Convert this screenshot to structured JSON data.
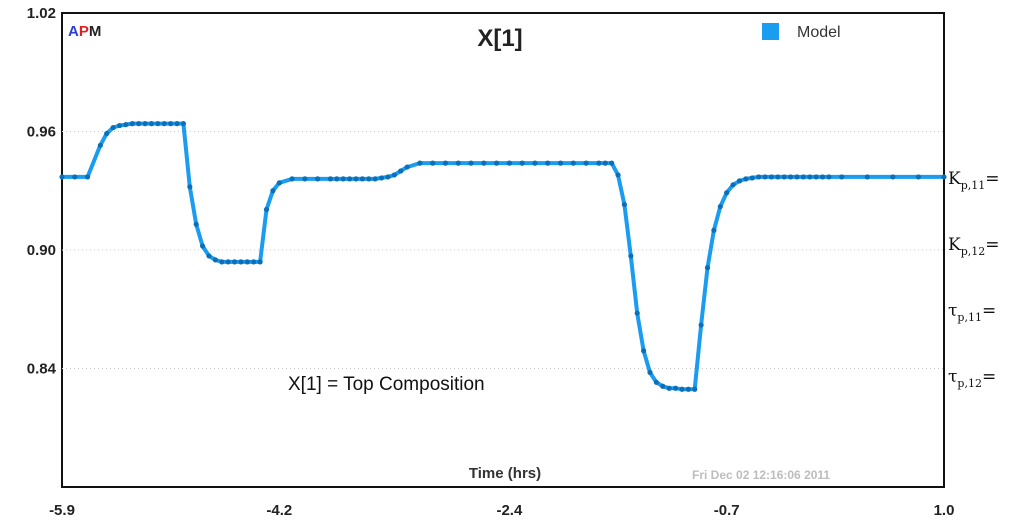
{
  "logo": {
    "a": "A",
    "p": "P",
    "m": "M",
    "a_color": "#2b3fd0",
    "p_color": "#e02020",
    "m_color": "#222222"
  },
  "stamp": "Fri Dec 02 12:16:06 2011",
  "annotation": "X[1] = Top Composition",
  "side_params": [
    {
      "base": "K",
      "sub": "p,11",
      "tail": "="
    },
    {
      "base": "K",
      "sub": "p,12",
      "tail": "="
    },
    {
      "base": "τ",
      "sub": "p,11",
      "tail": "="
    },
    {
      "base": "τ",
      "sub": "p,12",
      "tail": "="
    }
  ],
  "chart_data": {
    "type": "line",
    "title": "X[1]",
    "xlabel": "Time (hrs)",
    "ylabel": "",
    "xlim": [
      -5.9,
      1.0
    ],
    "ylim": [
      0.78,
      1.02
    ],
    "xticks": [
      "-5.9",
      "-4.2",
      "-2.4",
      "-0.7",
      "1.0"
    ],
    "xtick_values": [
      -5.9,
      -4.2,
      -2.4,
      -0.7,
      1.0
    ],
    "yticks": [
      "0.84",
      "0.90",
      "0.96",
      "1.02"
    ],
    "ytick_values": [
      0.84,
      0.9,
      0.96,
      1.02
    ],
    "grid": true,
    "legend": "top-right",
    "line_color": "#1a9cf0",
    "series": [
      {
        "name": "Model",
        "x": [
          -5.9,
          -5.8,
          -5.7,
          -5.6,
          -5.55,
          -5.5,
          -5.45,
          -5.4,
          -5.35,
          -5.3,
          -5.25,
          -5.2,
          -5.15,
          -5.1,
          -5.05,
          -5.0,
          -4.95,
          -4.9,
          -4.85,
          -4.8,
          -4.75,
          -4.7,
          -4.65,
          -4.6,
          -4.55,
          -4.5,
          -4.45,
          -4.4,
          -4.35,
          -4.3,
          -4.25,
          -4.2,
          -4.1,
          -4.0,
          -3.9,
          -3.8,
          -3.75,
          -3.7,
          -3.65,
          -3.6,
          -3.55,
          -3.5,
          -3.45,
          -3.4,
          -3.35,
          -3.3,
          -3.25,
          -3.2,
          -3.1,
          -3.0,
          -2.9,
          -2.8,
          -2.7,
          -2.6,
          -2.5,
          -2.4,
          -2.3,
          -2.2,
          -2.1,
          -2.0,
          -1.9,
          -1.8,
          -1.7,
          -1.65,
          -1.6,
          -1.55,
          -1.5,
          -1.45,
          -1.4,
          -1.35,
          -1.3,
          -1.25,
          -1.2,
          -1.15,
          -1.1,
          -1.05,
          -1.0,
          -0.95,
          -0.9,
          -0.85,
          -0.8,
          -0.75,
          -0.7,
          -0.65,
          -0.6,
          -0.55,
          -0.5,
          -0.45,
          -0.4,
          -0.35,
          -0.3,
          -0.25,
          -0.2,
          -0.15,
          -0.1,
          -0.05,
          0.0,
          0.05,
          0.1,
          0.2,
          0.4,
          0.6,
          0.8,
          1.0
        ],
        "y": [
          0.937,
          0.937,
          0.937,
          0.953,
          0.959,
          0.962,
          0.963,
          0.9635,
          0.964,
          0.964,
          0.964,
          0.964,
          0.964,
          0.964,
          0.964,
          0.964,
          0.964,
          0.932,
          0.913,
          0.902,
          0.897,
          0.895,
          0.894,
          0.894,
          0.894,
          0.894,
          0.894,
          0.894,
          0.894,
          0.9205,
          0.93,
          0.934,
          0.936,
          0.936,
          0.936,
          0.936,
          0.936,
          0.936,
          0.936,
          0.936,
          0.936,
          0.936,
          0.936,
          0.9365,
          0.937,
          0.938,
          0.94,
          0.942,
          0.944,
          0.944,
          0.944,
          0.944,
          0.944,
          0.944,
          0.944,
          0.944,
          0.944,
          0.944,
          0.944,
          0.944,
          0.944,
          0.944,
          0.944,
          0.944,
          0.944,
          0.938,
          0.923,
          0.897,
          0.868,
          0.849,
          0.838,
          0.833,
          0.831,
          0.83,
          0.83,
          0.8295,
          0.8295,
          0.8295,
          0.862,
          0.891,
          0.91,
          0.922,
          0.929,
          0.933,
          0.935,
          0.936,
          0.9365,
          0.937,
          0.937,
          0.937,
          0.937,
          0.937,
          0.937,
          0.937,
          0.937,
          0.937,
          0.937,
          0.937,
          0.937,
          0.937,
          0.937,
          0.937,
          0.937,
          0.937
        ]
      }
    ]
  }
}
